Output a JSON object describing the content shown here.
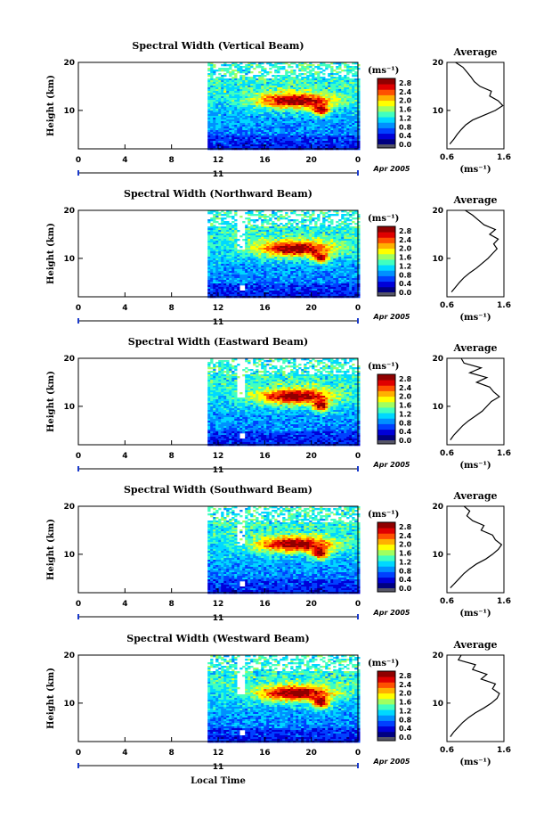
{
  "figure": {
    "xlabel": "Local Time",
    "date_label": "Apr 2005",
    "day_label": "11"
  },
  "colors": {
    "colormap": [
      "#000080",
      "#0000d8",
      "#0040ff",
      "#0090ff",
      "#00d8ff",
      "#40ffc0",
      "#a0ff60",
      "#ffff00",
      "#ffb000",
      "#ff5000",
      "#e00000",
      "#900000"
    ],
    "colormap_low_band": "#555566",
    "missing": "#ffffff"
  },
  "chart_data": [
    {
      "type": "heatmap",
      "title": "Spectral Width (Vertical Beam)",
      "xlabel": "",
      "ylabel": "Height (km)",
      "x_ticks": [
        "0",
        "4",
        "8",
        "12",
        "16",
        "20",
        "0"
      ],
      "y_ticks": [
        "20",
        "10"
      ],
      "xlim": [
        0,
        24
      ],
      "ylim": [
        2,
        20
      ],
      "data_start_hour": 11.1,
      "colorbar": {
        "unit": "(ms⁻¹)",
        "ticks": [
          "2.8",
          "2.4",
          "2.0",
          "1.6",
          "1.2",
          "0.8",
          "0.4",
          "0.0"
        ],
        "range": [
          0,
          3.0
        ]
      },
      "profile": {
        "title": "Average",
        "xlabel": "(ms⁻¹)",
        "x_ticks": [
          "0.6",
          "1.6"
        ],
        "y_ticks": [
          "20",
          "10"
        ],
        "xlim": [
          0.6,
          1.6
        ],
        "heights": [
          3,
          4,
          5,
          6,
          7,
          8,
          9,
          10,
          11,
          12,
          13,
          14,
          15,
          16,
          17,
          18,
          19,
          20
        ],
        "values": [
          0.65,
          0.72,
          0.78,
          0.85,
          0.93,
          1.05,
          1.25,
          1.45,
          1.58,
          1.5,
          1.35,
          1.38,
          1.18,
          1.08,
          1.02,
          0.95,
          0.88,
          0.75
        ]
      }
    },
    {
      "type": "heatmap",
      "title": "Spectral Width (Northward Beam)",
      "xlabel": "",
      "ylabel": "Height (km)",
      "x_ticks": [
        "0",
        "4",
        "8",
        "12",
        "16",
        "20",
        "0"
      ],
      "y_ticks": [
        "20",
        "10"
      ],
      "xlim": [
        0,
        24
      ],
      "ylim": [
        2,
        20
      ],
      "data_start_hour": 11.1,
      "colorbar": {
        "unit": "(ms⁻¹)",
        "ticks": [
          "2.8",
          "2.4",
          "2.0",
          "1.6",
          "1.2",
          "0.8",
          "0.4",
          "0.0"
        ],
        "range": [
          0,
          3.0
        ]
      },
      "profile": {
        "title": "Average",
        "xlabel": "(ms⁻¹)",
        "x_ticks": [
          "0.6",
          "1.6"
        ],
        "y_ticks": [
          "20",
          "10"
        ],
        "xlim": [
          0.6,
          1.6
        ],
        "heights": [
          3,
          4,
          5,
          6,
          7,
          8,
          9,
          10,
          11,
          12,
          13,
          14,
          15,
          16,
          17,
          18,
          19,
          20
        ],
        "values": [
          0.68,
          0.75,
          0.82,
          0.9,
          1.0,
          1.12,
          1.22,
          1.32,
          1.4,
          1.48,
          1.42,
          1.5,
          1.35,
          1.45,
          1.25,
          1.15,
          1.05,
          0.92
        ]
      }
    },
    {
      "type": "heatmap",
      "title": "Spectral Width (Eastward Beam)",
      "xlabel": "",
      "ylabel": "Height (km)",
      "x_ticks": [
        "0",
        "4",
        "8",
        "12",
        "16",
        "20",
        "0"
      ],
      "y_ticks": [
        "20",
        "10"
      ],
      "xlim": [
        0,
        24
      ],
      "ylim": [
        2,
        20
      ],
      "data_start_hour": 11.1,
      "colorbar": {
        "unit": "(ms⁻¹)",
        "ticks": [
          "2.8",
          "2.4",
          "2.0",
          "1.6",
          "1.2",
          "0.8",
          "0.4",
          "0.0"
        ],
        "range": [
          0,
          3.0
        ]
      },
      "profile": {
        "title": "Average",
        "xlabel": "(ms⁻¹)",
        "x_ticks": [
          "0.6",
          "1.6"
        ],
        "y_ticks": [
          "20",
          "10"
        ],
        "xlim": [
          0.6,
          1.6
        ],
        "heights": [
          3,
          4,
          5,
          6,
          7,
          8,
          9,
          10,
          11,
          12,
          13,
          14,
          15,
          16,
          17,
          18,
          19,
          20
        ],
        "values": [
          0.66,
          0.72,
          0.8,
          0.88,
          0.98,
          1.1,
          1.22,
          1.3,
          1.38,
          1.52,
          1.42,
          1.35,
          1.12,
          1.3,
          1.0,
          1.2,
          0.9,
          0.85
        ]
      }
    },
    {
      "type": "heatmap",
      "title": "Spectral Width (Southward Beam)",
      "xlabel": "",
      "ylabel": "Height (km)",
      "x_ticks": [
        "0",
        "4",
        "8",
        "12",
        "16",
        "20",
        "0"
      ],
      "y_ticks": [
        "20",
        "10"
      ],
      "xlim": [
        0,
        24
      ],
      "ylim": [
        2,
        20
      ],
      "data_start_hour": 11.1,
      "colorbar": {
        "unit": "(ms⁻¹)",
        "ticks": [
          "2.8",
          "2.4",
          "2.0",
          "1.6",
          "1.2",
          "0.8",
          "0.4",
          "0.0"
        ],
        "range": [
          0,
          3.0
        ]
      },
      "profile": {
        "title": "Average",
        "xlabel": "(ms⁻¹)",
        "x_ticks": [
          "0.6",
          "1.6"
        ],
        "y_ticks": [
          "20",
          "10"
        ],
        "xlim": [
          0.6,
          1.6
        ],
        "heights": [
          3,
          4,
          5,
          6,
          7,
          8,
          9,
          10,
          11,
          12,
          13,
          14,
          15,
          16,
          17,
          18,
          19,
          20
        ],
        "values": [
          0.66,
          0.74,
          0.82,
          0.9,
          1.0,
          1.12,
          1.28,
          1.4,
          1.5,
          1.56,
          1.45,
          1.4,
          1.2,
          1.25,
          1.05,
          0.95,
          1.0,
          0.9
        ]
      }
    },
    {
      "type": "heatmap",
      "title": "Spectral Width (Westward Beam)",
      "xlabel": "",
      "ylabel": "Height (km)",
      "x_ticks": [
        "0",
        "4",
        "8",
        "12",
        "16",
        "20",
        "0"
      ],
      "y_ticks": [
        "20",
        "10"
      ],
      "xlim": [
        0,
        24
      ],
      "ylim": [
        2,
        20
      ],
      "data_start_hour": 11.1,
      "colorbar": {
        "unit": "(ms⁻¹)",
        "ticks": [
          "2.8",
          "2.4",
          "2.0",
          "1.6",
          "1.2",
          "0.8",
          "0.4",
          "0.0"
        ],
        "range": [
          0,
          3.0
        ]
      },
      "profile": {
        "title": "Average",
        "xlabel": "(ms⁻¹)",
        "x_ticks": [
          "0.6",
          "1.6"
        ],
        "y_ticks": [
          "20",
          "10"
        ],
        "xlim": [
          0.6,
          1.6
        ],
        "heights": [
          3,
          4,
          5,
          6,
          7,
          8,
          9,
          10,
          11,
          12,
          13,
          14,
          15,
          16,
          17,
          18,
          19,
          20
        ],
        "values": [
          0.66,
          0.72,
          0.8,
          0.88,
          0.98,
          1.1,
          1.25,
          1.38,
          1.48,
          1.52,
          1.4,
          1.45,
          1.2,
          1.3,
          1.05,
          1.1,
          0.8,
          0.85
        ]
      }
    }
  ]
}
